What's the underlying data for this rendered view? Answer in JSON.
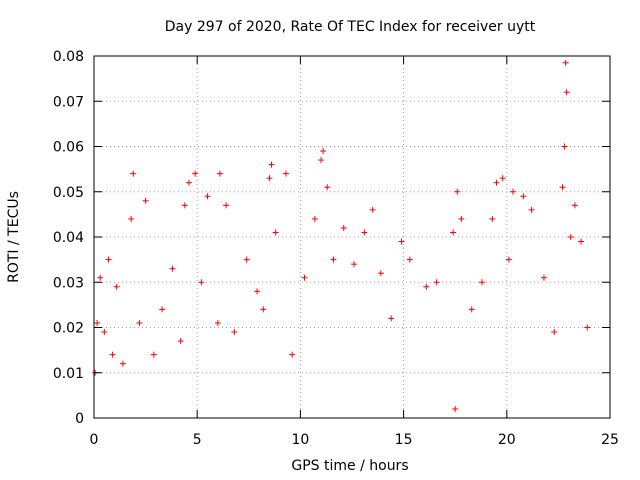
{
  "chart_data": {
    "type": "scatter",
    "title": "Day 297 of 2020, Rate Of TEC Index for receiver uytt",
    "xlabel": "GPS time / hours",
    "ylabel": "ROTI / TECUs",
    "xlim": [
      0,
      25
    ],
    "ylim": [
      0,
      0.08
    ],
    "x_ticks": [
      0,
      5,
      10,
      15,
      20,
      25
    ],
    "x_tick_labels": [
      "0",
      "5",
      "10",
      "15",
      "20",
      "25"
    ],
    "y_ticks": [
      0,
      0.01,
      0.02,
      0.03,
      0.04,
      0.05,
      0.06,
      0.07,
      0.08
    ],
    "y_tick_labels": [
      "0",
      "0.01",
      "0.02",
      "0.03",
      "0.04",
      "0.05",
      "0.06",
      "0.07",
      "0.08"
    ],
    "grid": true,
    "marker": "+",
    "color": "#ff0000",
    "series": [
      {
        "name": "ROTI",
        "points": [
          [
            0.05,
            0.01
          ],
          [
            0.15,
            0.021
          ],
          [
            0.3,
            0.031
          ],
          [
            0.5,
            0.019
          ],
          [
            0.7,
            0.035
          ],
          [
            0.9,
            0.014
          ],
          [
            1.1,
            0.029
          ],
          [
            1.4,
            0.012
          ],
          [
            1.8,
            0.044
          ],
          [
            1.9,
            0.054
          ],
          [
            2.2,
            0.021
          ],
          [
            2.5,
            0.048
          ],
          [
            2.9,
            0.014
          ],
          [
            3.3,
            0.024
          ],
          [
            3.8,
            0.033
          ],
          [
            4.2,
            0.017
          ],
          [
            4.4,
            0.047
          ],
          [
            4.6,
            0.052
          ],
          [
            4.9,
            0.054
          ],
          [
            5.2,
            0.03
          ],
          [
            5.5,
            0.049
          ],
          [
            6.0,
            0.021
          ],
          [
            6.1,
            0.054
          ],
          [
            6.4,
            0.047
          ],
          [
            6.8,
            0.019
          ],
          [
            7.4,
            0.035
          ],
          [
            7.9,
            0.028
          ],
          [
            8.2,
            0.024
          ],
          [
            8.5,
            0.053
          ],
          [
            8.6,
            0.056
          ],
          [
            8.8,
            0.041
          ],
          [
            9.3,
            0.054
          ],
          [
            9.6,
            0.014
          ],
          [
            10.2,
            0.031
          ],
          [
            10.7,
            0.044
          ],
          [
            11.0,
            0.057
          ],
          [
            11.1,
            0.059
          ],
          [
            11.3,
            0.051
          ],
          [
            11.6,
            0.035
          ],
          [
            12.1,
            0.042
          ],
          [
            12.6,
            0.034
          ],
          [
            13.1,
            0.041
          ],
          [
            13.5,
            0.046
          ],
          [
            13.9,
            0.032
          ],
          [
            14.4,
            0.022
          ],
          [
            14.9,
            0.039
          ],
          [
            15.3,
            0.035
          ],
          [
            16.1,
            0.029
          ],
          [
            16.6,
            0.03
          ],
          [
            17.4,
            0.041
          ],
          [
            17.6,
            0.05
          ],
          [
            17.8,
            0.044
          ],
          [
            18.3,
            0.024
          ],
          [
            18.8,
            0.03
          ],
          [
            19.3,
            0.044
          ],
          [
            19.5,
            0.052
          ],
          [
            19.8,
            0.053
          ],
          [
            20.1,
            0.035
          ],
          [
            20.3,
            0.05
          ],
          [
            20.8,
            0.049
          ],
          [
            21.2,
            0.046
          ],
          [
            21.8,
            0.031
          ],
          [
            22.3,
            0.019
          ],
          [
            22.7,
            0.051
          ],
          [
            22.8,
            0.06
          ],
          [
            22.85,
            0.0785
          ],
          [
            22.9,
            0.072
          ],
          [
            23.1,
            0.04
          ],
          [
            23.3,
            0.047
          ],
          [
            23.6,
            0.039
          ],
          [
            23.9,
            0.02
          ],
          [
            17.5,
            0.002
          ]
        ]
      }
    ]
  }
}
